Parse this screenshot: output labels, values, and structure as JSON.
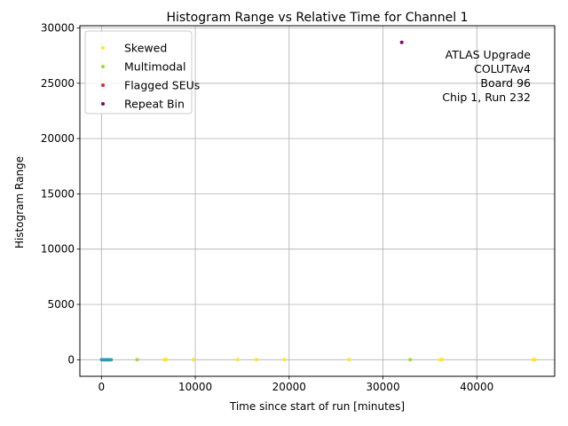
{
  "chart_data": {
    "type": "scatter",
    "title": "Histogram Range vs Relative Time for Channel 1",
    "xlabel": "Time since start of run [minutes]",
    "ylabel": "Histogram Range",
    "xlim": [
      -2300,
      48300
    ],
    "ylim": [
      -1500,
      30200
    ],
    "xticks": [
      0,
      10000,
      20000,
      30000,
      40000
    ],
    "yticks": [
      0,
      5000,
      10000,
      15000,
      20000,
      25000,
      30000
    ],
    "grid": true,
    "legend_position": "top-left",
    "annotation": [
      "ATLAS Upgrade",
      "COLUTAv4",
      "Board 96",
      "Chip 1, Run 232"
    ],
    "colors": {
      "skewed": "#fde725",
      "multimodal": "#a0da39",
      "flagged": "#e8262b",
      "repeat": "#7b0a6b",
      "cluster_a": "#2aa6a0",
      "cluster_b": "#3b7fd0",
      "grid": "#b0b0b0"
    },
    "series": [
      {
        "name": "Skewed",
        "color": "#fde725",
        "x": [
          6700,
          6900,
          9800,
          14500,
          16500,
          19500,
          26400,
          36100,
          36300,
          46000,
          46200
        ],
        "y": [
          0,
          0,
          0,
          0,
          0,
          0,
          0,
          0,
          0,
          0,
          0
        ]
      },
      {
        "name": "Multimodal",
        "color": "#a0da39",
        "x": [
          3800,
          32900
        ],
        "y": [
          0,
          0
        ]
      },
      {
        "name": "Flagged SEUs",
        "color": "#e8262b",
        "x": [],
        "y": []
      },
      {
        "name": "Repeat Bin",
        "color": "#7b0a6b",
        "x": [
          32000
        ],
        "y": [
          28700
        ]
      }
    ],
    "cluster": {
      "color_a": "#2aa6a0",
      "color_b": "#3b7fd0",
      "x_start": 0,
      "x_end": 1050,
      "step": 15,
      "y": 0
    }
  }
}
